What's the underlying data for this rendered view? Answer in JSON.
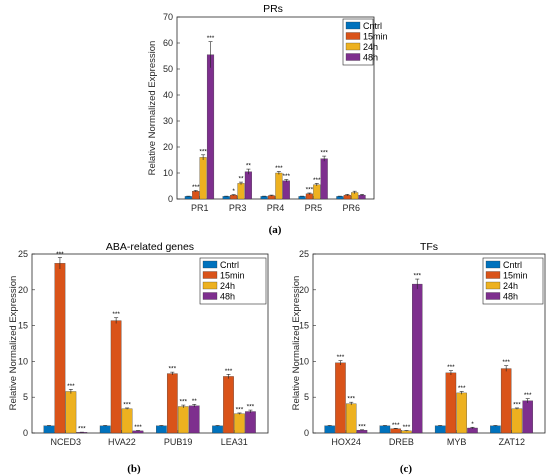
{
  "colors": {
    "Cntrl": "#0072BD",
    "15min": "#D95319",
    "24h": "#EDB120",
    "48h": "#7E2F8E"
  },
  "captions": [
    "(a)",
    "(b)",
    "(c)"
  ],
  "chart_data": [
    {
      "type": "bar",
      "title": "PRs",
      "ylabel": "Relative Normalized Expression",
      "xlabel": "",
      "ylim": [
        0,
        70
      ],
      "yticks": [
        0,
        10,
        20,
        30,
        40,
        50,
        60,
        70
      ],
      "categories": [
        "PR1",
        "PR3",
        "PR4",
        "PR5",
        "PR6"
      ],
      "legend_position": "top-right",
      "series": [
        {
          "name": "Cntrl",
          "values": [
            1.0,
            1.0,
            1.0,
            1.0,
            1.0
          ],
          "errors": [
            0.1,
            0.1,
            0.1,
            0.1,
            0.1
          ],
          "sig": [
            "",
            "",
            "",
            "",
            ""
          ]
        },
        {
          "name": "15min",
          "values": [
            3.0,
            1.5,
            1.3,
            2.0,
            1.5
          ],
          "errors": [
            0.3,
            0.2,
            0.2,
            0.3,
            0.3
          ],
          "sig": [
            "***",
            "*",
            "",
            "***",
            ""
          ]
        },
        {
          "name": "24h",
          "values": [
            16.0,
            6.0,
            10.0,
            5.5,
            2.5
          ],
          "errors": [
            1.0,
            0.5,
            0.6,
            0.5,
            0.5
          ],
          "sig": [
            "***",
            "**",
            "***",
            "***",
            ""
          ]
        },
        {
          "name": "48h",
          "values": [
            55.5,
            10.5,
            7.0,
            15.5,
            1.5
          ],
          "errors": [
            5.0,
            1.0,
            0.5,
            1.0,
            0.3
          ],
          "sig": [
            "***",
            "**",
            "***",
            "***",
            ""
          ]
        }
      ]
    },
    {
      "type": "bar",
      "title": "ABA-related genes",
      "ylabel": "Relative Normalized Expression",
      "xlabel": "",
      "ylim": [
        0,
        25
      ],
      "yticks": [
        0,
        5,
        10,
        15,
        20,
        25
      ],
      "categories": [
        "NCED3",
        "HVA22",
        "PUB19",
        "LEA31"
      ],
      "legend_position": "top-right",
      "series": [
        {
          "name": "Cntrl",
          "values": [
            1.0,
            1.0,
            1.0,
            1.0
          ],
          "errors": [
            0.05,
            0.05,
            0.05,
            0.05
          ],
          "sig": [
            "",
            "",
            "",
            ""
          ]
        },
        {
          "name": "15min",
          "values": [
            23.7,
            15.7,
            8.3,
            7.9
          ],
          "errors": [
            0.8,
            0.4,
            0.2,
            0.3
          ],
          "sig": [
            "***",
            "***",
            "***",
            "***"
          ]
        },
        {
          "name": "24h",
          "values": [
            5.8,
            3.4,
            3.7,
            2.7
          ],
          "errors": [
            0.3,
            0.1,
            0.2,
            0.1
          ],
          "sig": [
            "***",
            "***",
            "***",
            "***"
          ]
        },
        {
          "name": "48h",
          "values": [
            0.1,
            0.3,
            3.8,
            3.0
          ],
          "errors": [
            0.02,
            0.05,
            0.2,
            0.2
          ],
          "sig": [
            "***",
            "***",
            "**",
            "***"
          ]
        }
      ]
    },
    {
      "type": "bar",
      "title": "TFs",
      "ylabel": "Relative Normalized Expression",
      "xlabel": "",
      "ylim": [
        0,
        25
      ],
      "yticks": [
        0,
        5,
        10,
        15,
        20,
        25
      ],
      "categories": [
        "HOX24",
        "DREB",
        "MYB",
        "ZAT12"
      ],
      "legend_position": "top-right",
      "series": [
        {
          "name": "Cntrl",
          "values": [
            1.0,
            1.0,
            1.0,
            1.0
          ],
          "errors": [
            0.05,
            0.05,
            0.05,
            0.05
          ],
          "sig": [
            "",
            "",
            "",
            ""
          ]
        },
        {
          "name": "15min",
          "values": [
            9.8,
            0.6,
            8.4,
            9.0
          ],
          "errors": [
            0.3,
            0.05,
            0.3,
            0.4
          ],
          "sig": [
            "***",
            "***",
            "***",
            "***"
          ]
        },
        {
          "name": "24h",
          "values": [
            4.1,
            0.3,
            5.6,
            3.4
          ],
          "errors": [
            0.2,
            0.05,
            0.2,
            0.1
          ],
          "sig": [
            "***",
            "***",
            "***",
            "***"
          ]
        },
        {
          "name": "48h",
          "values": [
            0.4,
            20.8,
            0.7,
            4.5
          ],
          "errors": [
            0.05,
            0.7,
            0.1,
            0.3
          ],
          "sig": [
            "***",
            "***",
            "*",
            "***"
          ]
        }
      ]
    }
  ]
}
